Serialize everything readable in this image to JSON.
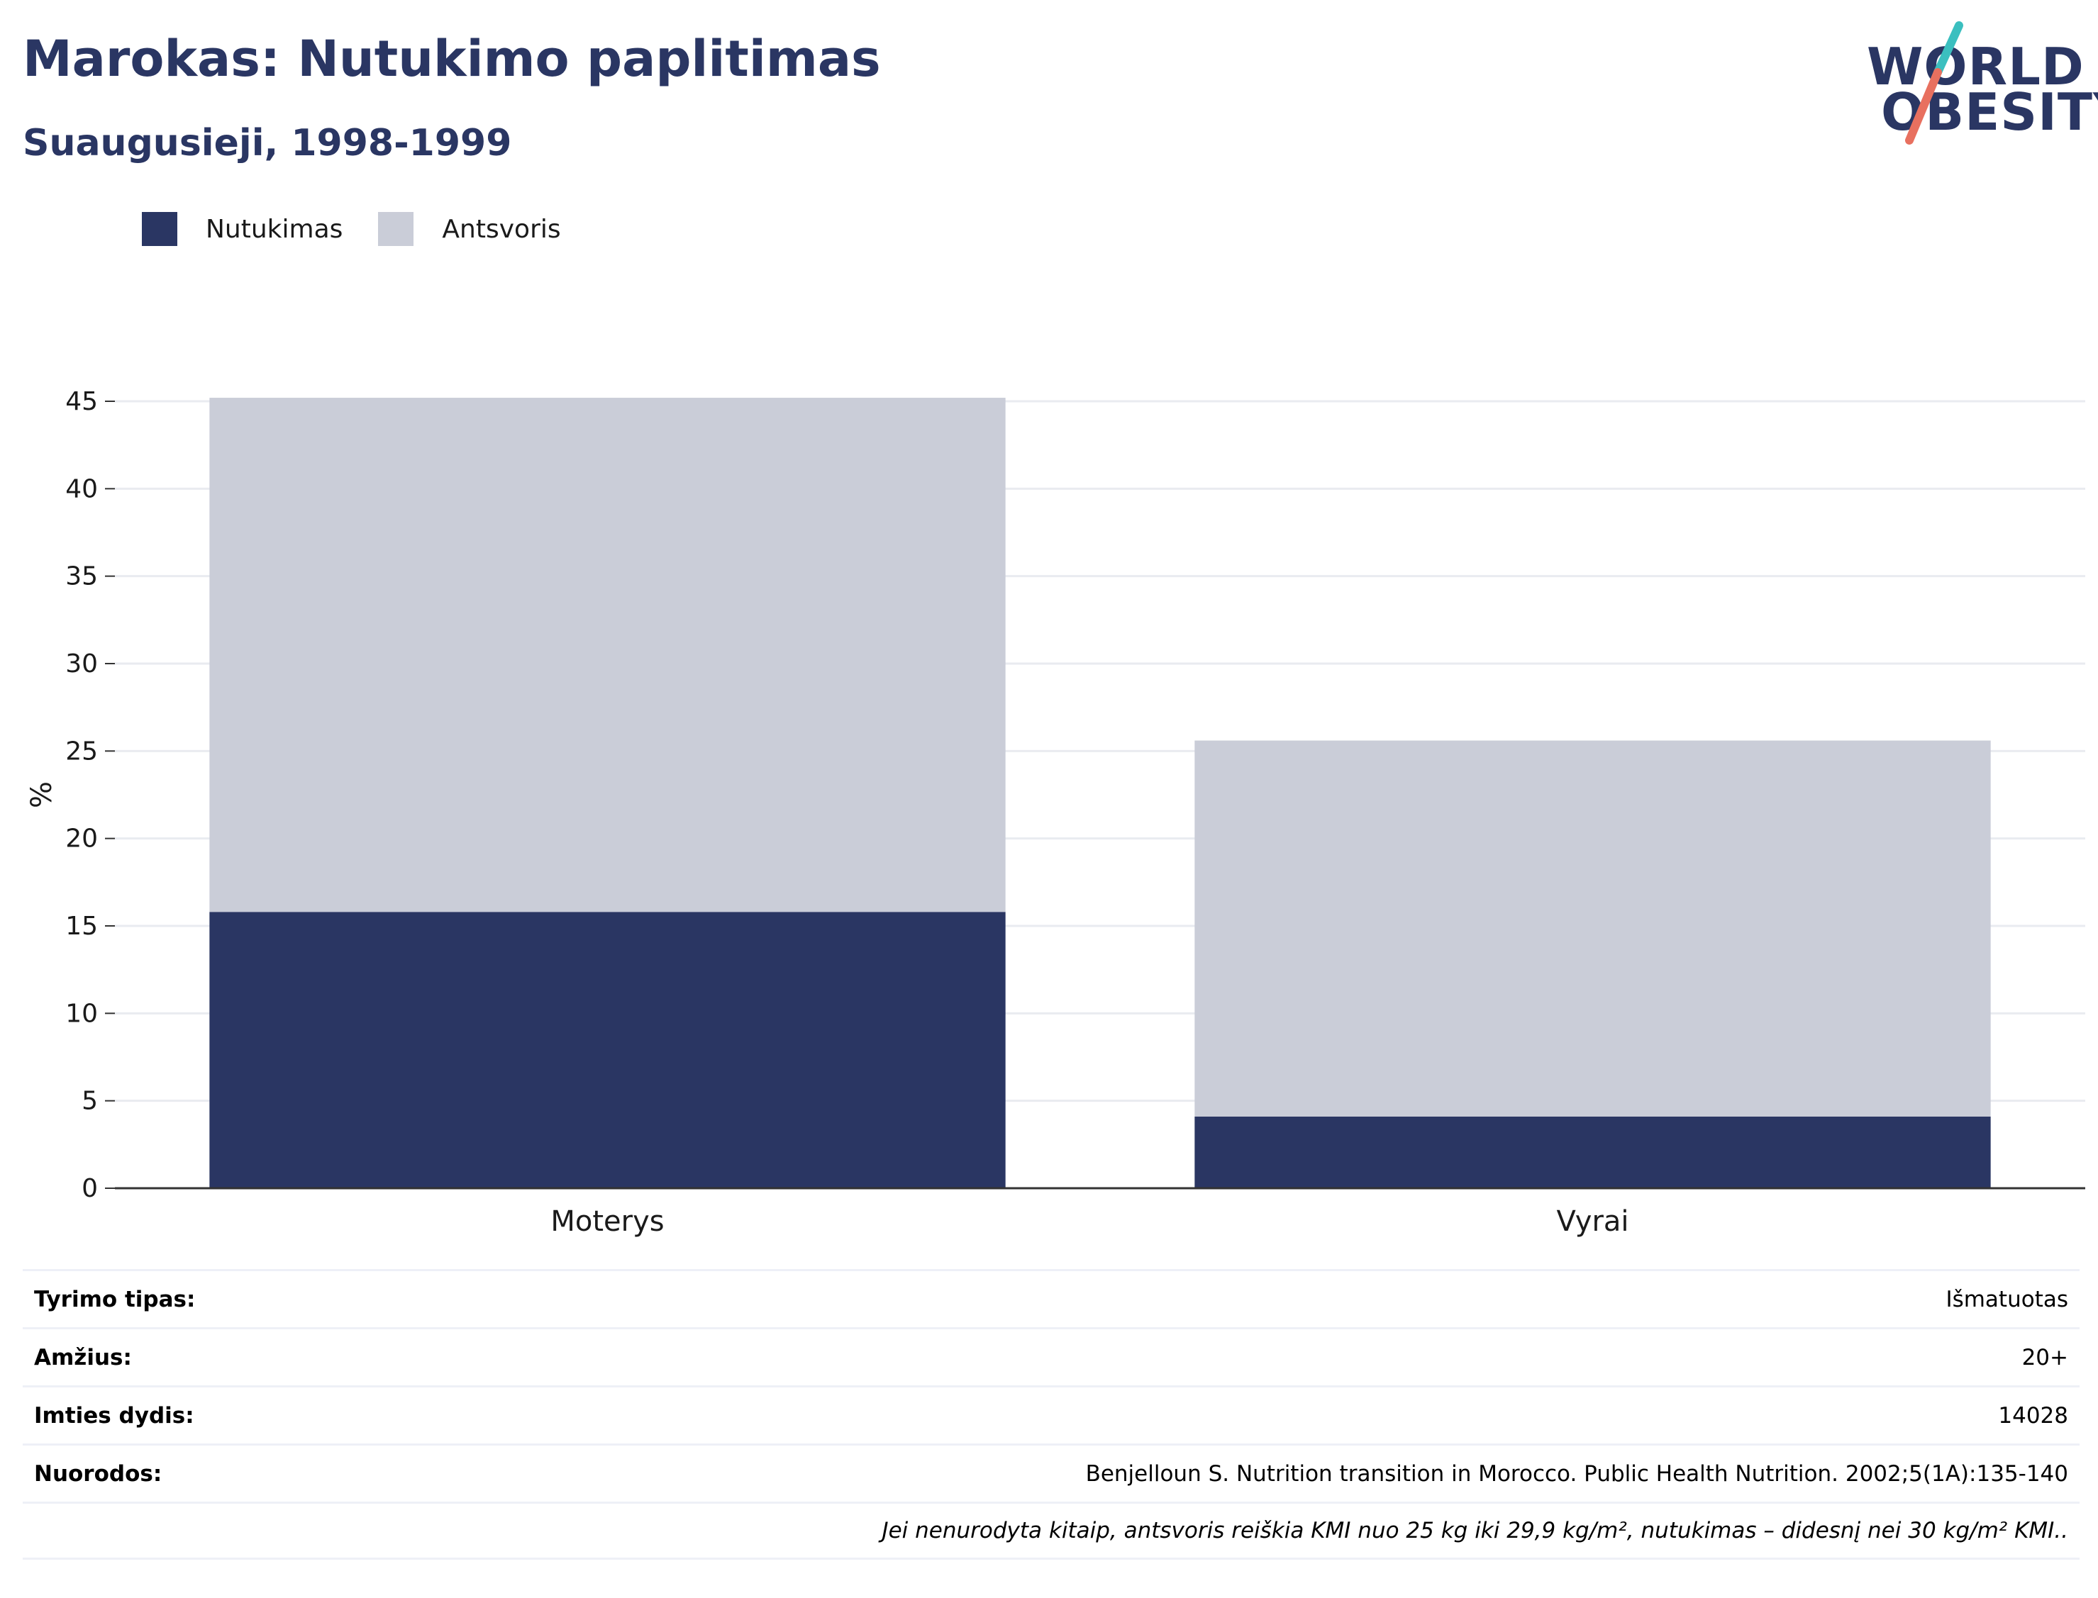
{
  "header": {
    "title": "Marokas: Nutukimo paplitimas",
    "subtitle": "Suaugusieji, 1998-1999"
  },
  "logo": {
    "line1": "WORLD",
    "line2": "OBESITY",
    "colors": {
      "text": "#2a3663",
      "slash_teal": "#3bbfbf",
      "slash_coral": "#e8705f"
    }
  },
  "legend": [
    {
      "label": "Nutukimas",
      "color": "#2a3663"
    },
    {
      "label": "Antsvoris",
      "color": "#cacdd8"
    }
  ],
  "chart_data": {
    "type": "bar",
    "stacked": true,
    "categories": [
      "Moterys",
      "Vyrai"
    ],
    "series": [
      {
        "name": "Nutukimas",
        "color": "#2a3663",
        "values": [
          15.8,
          4.1
        ]
      },
      {
        "name": "Antsvoris",
        "color": "#cacdd8",
        "values": [
          29.4,
          21.5
        ]
      }
    ],
    "ylabel": "%",
    "ylim": [
      0,
      45
    ],
    "yticks": [
      0,
      5,
      10,
      15,
      20,
      25,
      30,
      35,
      40,
      45
    ],
    "grid": true,
    "legend_position": "top-left"
  },
  "info": [
    {
      "label": "Tyrimo tipas:",
      "value": "Išmatuotas"
    },
    {
      "label": "Amžius:",
      "value": "20+"
    },
    {
      "label": "Imties dydis:",
      "value": "14028"
    },
    {
      "label": "Nuorodos:",
      "value": "Benjelloun S. Nutrition transition in Morocco. Public Health Nutrition. 2002;5(1A):135-140"
    }
  ],
  "note": "Jei nenurodyta kitaip, antsvoris reiškia KMI nuo 25 kg iki 29,9 kg/m², nutukimas – didesnį nei 30 kg/m² KMI.."
}
